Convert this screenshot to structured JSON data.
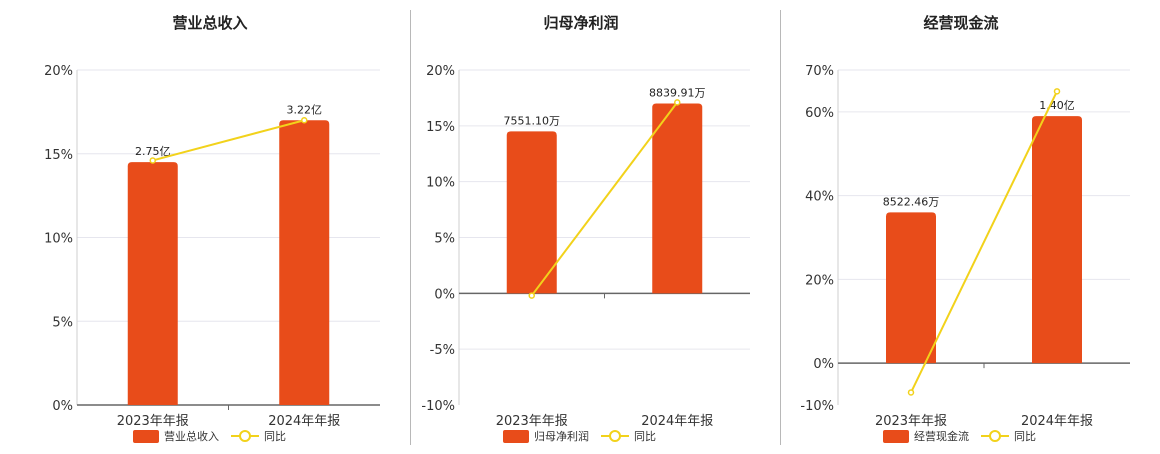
{
  "colors": {
    "bar": "#E84C1A",
    "line": "#F2D21B",
    "grid": "#E6E6EE",
    "axis": "#666666"
  },
  "chart_data": [
    {
      "type": "bar",
      "title": "营业总收入",
      "categories": [
        "2023年年报",
        "2024年年报"
      ],
      "series": [
        {
          "name": "营业总收入",
          "type": "bar",
          "values": [
            14.5,
            17.0
          ],
          "labels": [
            "2.75亿",
            "3.22亿"
          ]
        },
        {
          "name": "同比",
          "type": "line",
          "values": [
            14.6,
            17.0
          ]
        }
      ],
      "yticks": [
        "20%",
        "15%",
        "10%",
        "5%",
        "0%"
      ],
      "ylim": [
        0,
        20
      ],
      "grid": true,
      "legend": "bottom"
    },
    {
      "type": "bar",
      "title": "归母净利润",
      "categories": [
        "2023年年报",
        "2024年年报"
      ],
      "series": [
        {
          "name": "归母净利润",
          "type": "bar",
          "values": [
            14.5,
            17.0
          ],
          "labels": [
            "7551.10万",
            "8839.91万"
          ]
        },
        {
          "name": "同比",
          "type": "line",
          "values": [
            -0.2,
            17.1
          ]
        }
      ],
      "yticks": [
        "20%",
        "15%",
        "10%",
        "5%",
        "0%",
        "-5%",
        "-10%"
      ],
      "ylim": [
        -10,
        20
      ],
      "grid": true,
      "legend": "bottom"
    },
    {
      "type": "bar",
      "title": "经营现金流",
      "categories": [
        "2023年年报",
        "2024年年报"
      ],
      "series": [
        {
          "name": "经营现金流",
          "type": "bar",
          "values": [
            36.0,
            59.0
          ],
          "labels": [
            "8522.46万",
            "1.40亿"
          ]
        },
        {
          "name": "同比",
          "type": "line",
          "values": [
            -7.0,
            64.9
          ]
        }
      ],
      "yticks": [
        "70%",
        "60%",
        "40%",
        "20%",
        "0%",
        "-10%"
      ],
      "ylim": [
        -10,
        70
      ],
      "grid": true,
      "legend": "bottom"
    }
  ]
}
